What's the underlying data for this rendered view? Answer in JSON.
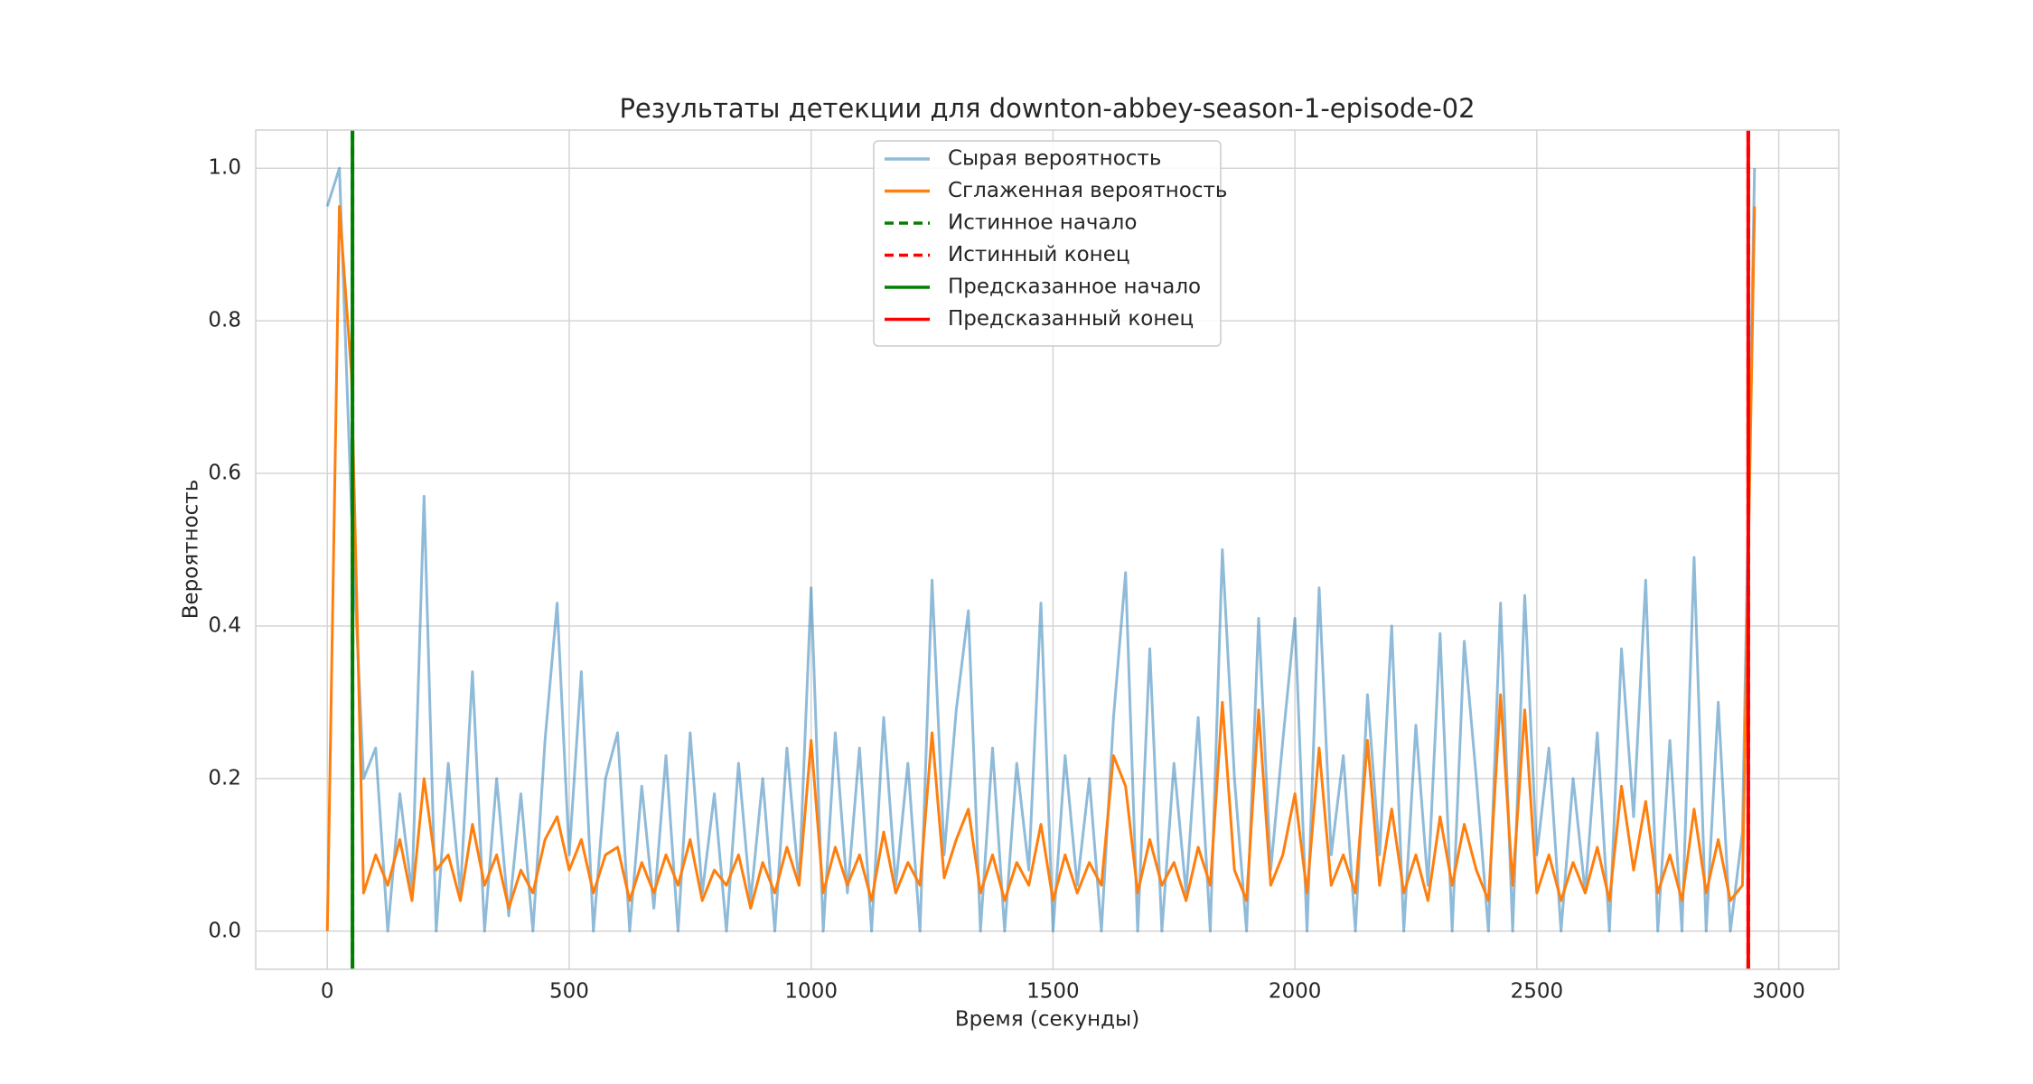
{
  "chart_data": {
    "type": "line",
    "title": "Результаты детекции для downton-abbey-season-1-episode-02",
    "xlabel": "Время (секунды)",
    "ylabel": "Вероятность",
    "x": [
      0,
      25,
      50,
      75,
      100,
      125,
      150,
      175,
      200,
      225,
      250,
      275,
      300,
      325,
      350,
      375,
      400,
      425,
      450,
      475,
      500,
      525,
      550,
      575,
      600,
      625,
      650,
      675,
      700,
      725,
      750,
      775,
      800,
      825,
      850,
      875,
      900,
      925,
      950,
      975,
      1000,
      1025,
      1050,
      1075,
      1100,
      1125,
      1150,
      1175,
      1200,
      1225,
      1250,
      1275,
      1300,
      1325,
      1350,
      1375,
      1400,
      1425,
      1450,
      1475,
      1500,
      1525,
      1550,
      1575,
      1600,
      1625,
      1650,
      1675,
      1700,
      1725,
      1750,
      1775,
      1800,
      1825,
      1850,
      1875,
      1900,
      1925,
      1950,
      1975,
      2000,
      2025,
      2050,
      2075,
      2100,
      2125,
      2150,
      2175,
      2200,
      2225,
      2250,
      2275,
      2300,
      2325,
      2350,
      2375,
      2400,
      2425,
      2450,
      2475,
      2500,
      2525,
      2550,
      2575,
      2600,
      2625,
      2650,
      2675,
      2700,
      2725,
      2750,
      2775,
      2800,
      2825,
      2850,
      2875,
      2900,
      2925,
      2950
    ],
    "series": [
      {
        "name": "Сырая вероятность",
        "color": "#1f77b4",
        "alpha": 0.5,
        "values": [
          0.95,
          1.0,
          0.55,
          0.2,
          0.24,
          0.0,
          0.18,
          0.05,
          0.57,
          0.0,
          0.22,
          0.05,
          0.34,
          0.0,
          0.2,
          0.02,
          0.18,
          0.0,
          0.25,
          0.43,
          0.1,
          0.34,
          0.0,
          0.2,
          0.26,
          0.0,
          0.19,
          0.03,
          0.23,
          0.0,
          0.26,
          0.05,
          0.18,
          0.0,
          0.22,
          0.04,
          0.2,
          0.0,
          0.24,
          0.06,
          0.45,
          0.0,
          0.26,
          0.05,
          0.24,
          0.0,
          0.28,
          0.06,
          0.22,
          0.0,
          0.46,
          0.1,
          0.29,
          0.42,
          0.0,
          0.24,
          0.0,
          0.22,
          0.08,
          0.43,
          0.0,
          0.23,
          0.06,
          0.2,
          0.0,
          0.28,
          0.47,
          0.0,
          0.37,
          0.0,
          0.22,
          0.05,
          0.28,
          0.0,
          0.5,
          0.2,
          0.0,
          0.41,
          0.08,
          0.25,
          0.41,
          0.0,
          0.45,
          0.1,
          0.23,
          0.0,
          0.31,
          0.1,
          0.4,
          0.0,
          0.27,
          0.06,
          0.39,
          0.0,
          0.38,
          0.2,
          0.0,
          0.43,
          0.0,
          0.44,
          0.1,
          0.24,
          0.0,
          0.2,
          0.05,
          0.26,
          0.0,
          0.37,
          0.15,
          0.46,
          0.0,
          0.25,
          0.0,
          0.49,
          0.0,
          0.3,
          0.0,
          0.13,
          1.0
        ]
      },
      {
        "name": "Сглаженная вероятность",
        "color": "#ff7f0e",
        "alpha": 1,
        "values": [
          0.0,
          0.95,
          0.73,
          0.05,
          0.1,
          0.06,
          0.12,
          0.04,
          0.2,
          0.08,
          0.1,
          0.04,
          0.14,
          0.06,
          0.1,
          0.03,
          0.08,
          0.05,
          0.12,
          0.15,
          0.08,
          0.12,
          0.05,
          0.1,
          0.11,
          0.04,
          0.09,
          0.05,
          0.1,
          0.06,
          0.12,
          0.04,
          0.08,
          0.06,
          0.1,
          0.03,
          0.09,
          0.05,
          0.11,
          0.06,
          0.25,
          0.05,
          0.11,
          0.06,
          0.1,
          0.04,
          0.13,
          0.05,
          0.09,
          0.06,
          0.26,
          0.07,
          0.12,
          0.16,
          0.05,
          0.1,
          0.04,
          0.09,
          0.06,
          0.14,
          0.04,
          0.1,
          0.05,
          0.09,
          0.06,
          0.23,
          0.19,
          0.05,
          0.12,
          0.06,
          0.09,
          0.04,
          0.11,
          0.06,
          0.3,
          0.08,
          0.04,
          0.29,
          0.06,
          0.1,
          0.18,
          0.05,
          0.24,
          0.06,
          0.1,
          0.05,
          0.25,
          0.06,
          0.16,
          0.05,
          0.1,
          0.04,
          0.15,
          0.06,
          0.14,
          0.08,
          0.04,
          0.31,
          0.06,
          0.29,
          0.05,
          0.1,
          0.04,
          0.09,
          0.05,
          0.11,
          0.04,
          0.19,
          0.08,
          0.17,
          0.05,
          0.1,
          0.04,
          0.16,
          0.05,
          0.12,
          0.04,
          0.06,
          0.95
        ]
      }
    ],
    "vlines": [
      {
        "name": "Истинное начало",
        "x": 52,
        "color": "#008000",
        "style": "dashed"
      },
      {
        "name": "Истинный конец",
        "x": 2937,
        "color": "#ff0000",
        "style": "dashed"
      },
      {
        "name": "Предсказанное начало",
        "x": 52,
        "color": "#008000",
        "style": "solid"
      },
      {
        "name": "Предсказанный конец",
        "x": 2937,
        "color": "#ff0000",
        "style": "solid"
      }
    ],
    "xlim": [
      -148,
      3124
    ],
    "ylim": [
      -0.05,
      1.05
    ],
    "xticks": [
      0,
      500,
      1000,
      1500,
      2000,
      2500,
      3000
    ],
    "yticks": [
      {
        "value": 0,
        "label": "0.0"
      },
      0.2,
      0.4,
      0.6,
      0.8,
      {
        "value": 1,
        "label": "1.0"
      }
    ],
    "grid": true,
    "legend": "upper center"
  }
}
